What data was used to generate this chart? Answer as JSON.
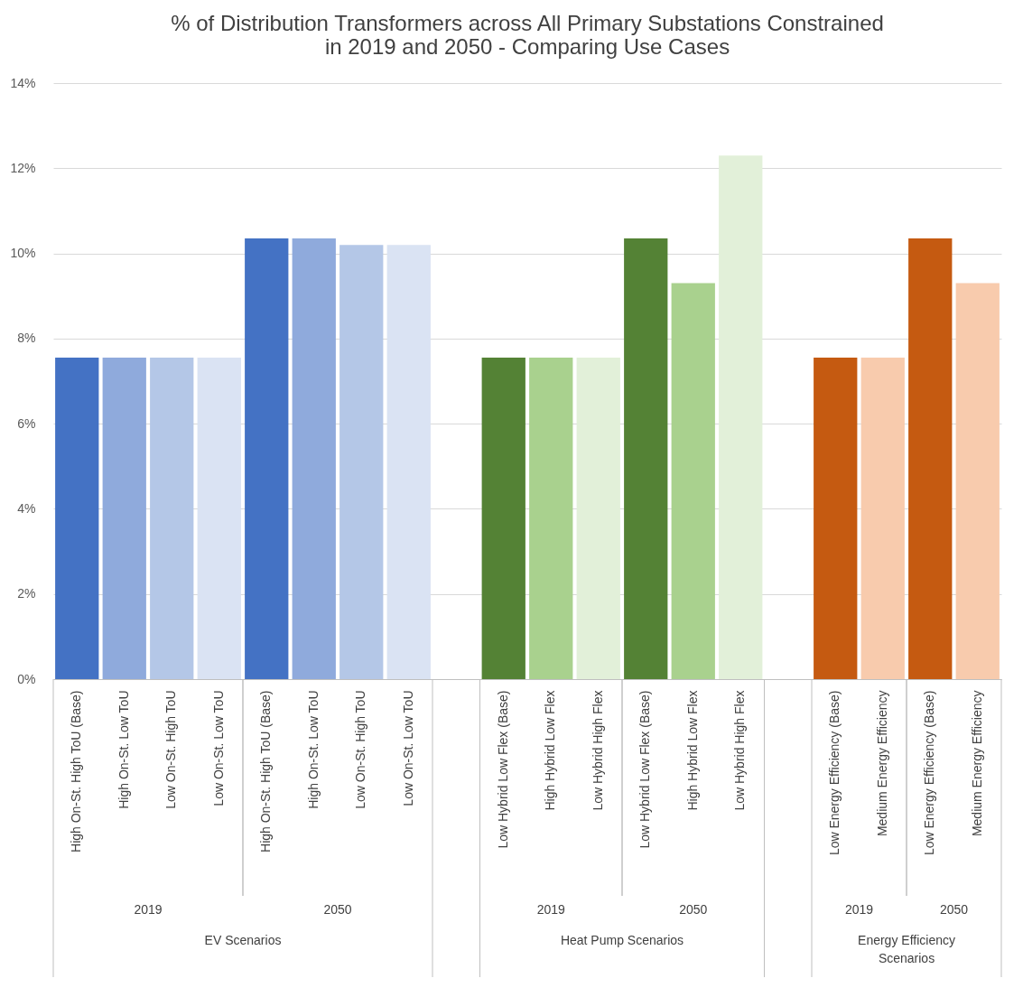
{
  "chart_data": {
    "type": "bar",
    "title": "% of Distribution Transformers across All Primary Substations Constrained in 2019 and 2050 - Comparing Use Cases",
    "categories": [
      "High On-St. High ToU (Base)",
      "High On-St. Low ToU",
      "Low On-St. High ToU",
      "Low On-St. Low ToU",
      "High On-St. High ToU (Base)",
      "High On-St. Low ToU",
      "Low On-St. High ToU",
      "Low On-St. Low ToU",
      null,
      "Low Hybrid Low Flex (Base)",
      "High Hybrid Low Flex",
      "Low Hybrid High Flex",
      "Low Hybrid Low Flex (Base)",
      "High Hybrid Low Flex",
      "Low Hybrid High Flex",
      null,
      "Low Energy Efficiency (Base)",
      "Medium Energy Efficiency",
      "Low Energy Efficiency (Base)",
      "Medium Energy Efficiency"
    ],
    "values": [
      7.55,
      7.55,
      7.55,
      7.55,
      10.35,
      10.35,
      10.2,
      10.2,
      null,
      7.55,
      7.55,
      7.55,
      10.35,
      9.3,
      12.3,
      null,
      7.55,
      7.55,
      10.35,
      9.3
    ],
    "colors": [
      "#4472c4",
      "#8faadc",
      "#b4c7e7",
      "#dae3f3",
      "#4472c4",
      "#8faadc",
      "#b4c7e7",
      "#dae3f3",
      null,
      "#548235",
      "#a9d18e",
      "#e2f0d9",
      "#548235",
      "#a9d18e",
      "#e2f0d9",
      null,
      "#c55a11",
      "#f8cbad",
      "#c55a11",
      "#f8cbad"
    ],
    "ylim": [
      0,
      14
    ],
    "yticks": [
      {
        "value": 0,
        "label": "0%"
      },
      {
        "value": 2,
        "label": "2%"
      },
      {
        "value": 4,
        "label": "4%"
      },
      {
        "value": 6,
        "label": "6%"
      },
      {
        "value": 8,
        "label": "8%"
      },
      {
        "value": 10,
        "label": "10%"
      },
      {
        "value": 12,
        "label": "12%"
      },
      {
        "value": 14,
        "label": "14%"
      }
    ],
    "grid": "y",
    "legend": false,
    "annotations": [
      "2019",
      "2050",
      "2019",
      "2050",
      "2019",
      "2050",
      "EV Scenarios",
      "Heat Pump Scenarios",
      "Energy Efficiency Scenarios"
    ]
  }
}
